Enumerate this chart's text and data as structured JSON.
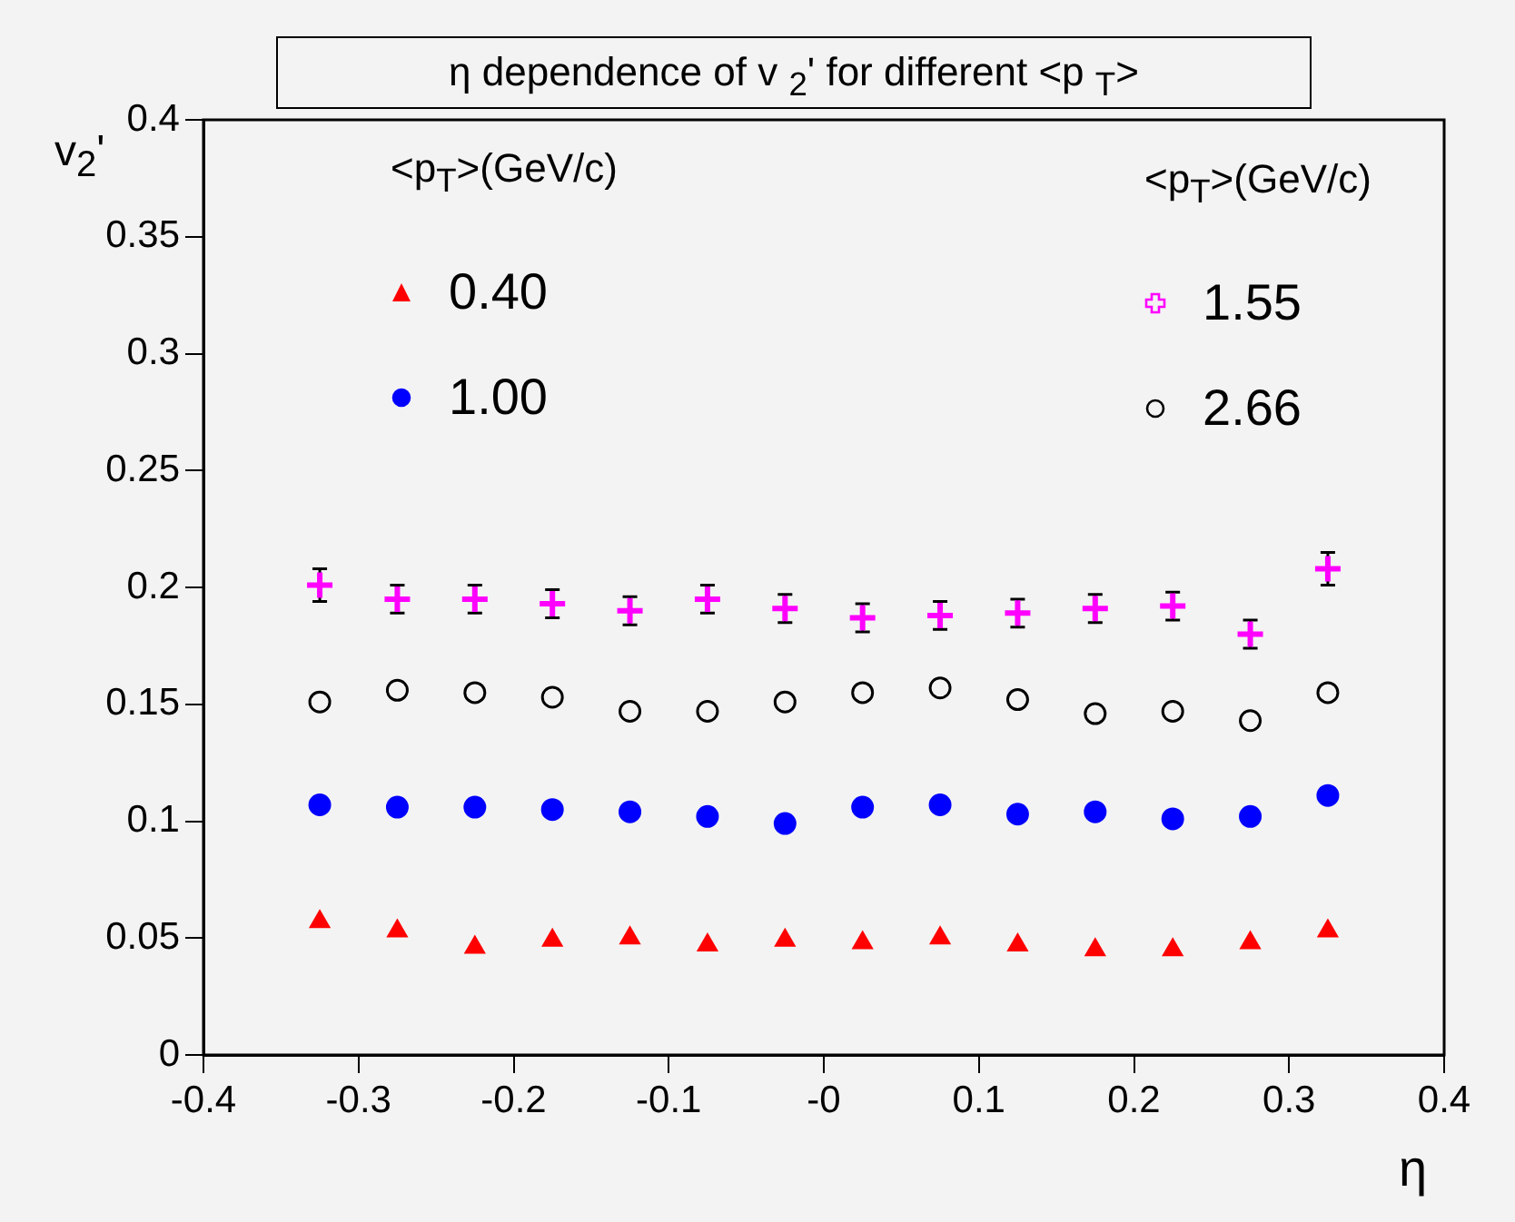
{
  "chart_data": {
    "type": "scatter",
    "title": "η dependence of v $_{2}$' for different <p $_{T}$>",
    "xlabel": "η",
    "ylabel": "v$_{2}$'",
    "legend_title": "<p$_{T}$>(GeV/c)",
    "legend": "top",
    "grid": false,
    "x": [
      -0.325,
      -0.275,
      -0.225,
      -0.175,
      -0.125,
      -0.075,
      -0.025,
      0.025,
      0.075,
      0.125,
      0.175,
      0.225,
      0.275,
      0.325
    ],
    "xlim": [
      -0.4,
      0.4
    ],
    "xticks": [
      -0.4,
      -0.3,
      -0.2,
      -0.1,
      {
        "value": 0,
        "label": "-0"
      },
      0.1,
      0.2,
      0.3,
      0.4
    ],
    "ylim": [
      0,
      0.4
    ],
    "yticks": [
      0,
      0.05,
      0.1,
      0.15,
      0.2,
      0.25,
      0.3,
      0.35,
      0.4
    ],
    "series": [
      {
        "name": "0.40",
        "color": "#ff0000",
        "marker": "triangle",
        "values": [
          0.057,
          0.053,
          0.046,
          0.049,
          0.05,
          0.047,
          0.049,
          0.048,
          0.05,
          0.047,
          0.045,
          0.045,
          0.048,
          0.053
        ]
      },
      {
        "name": "1.00",
        "color": "#0000ff",
        "marker": "circle",
        "values": [
          0.107,
          0.106,
          0.106,
          0.105,
          0.104,
          0.102,
          0.099,
          0.106,
          0.107,
          0.103,
          0.104,
          0.101,
          0.102,
          0.111
        ]
      },
      {
        "name": "1.55",
        "color": "#ff00ff",
        "marker": "cross",
        "values": [
          0.201,
          0.195,
          0.195,
          0.193,
          0.19,
          0.195,
          0.191,
          0.187,
          0.188,
          0.189,
          0.191,
          0.192,
          0.18,
          0.208
        ],
        "errors": [
          0.007,
          0.006,
          0.006,
          0.006,
          0.006,
          0.006,
          0.006,
          0.006,
          0.006,
          0.006,
          0.006,
          0.006,
          0.006,
          0.007
        ]
      },
      {
        "name": "2.66",
        "color": "#000000",
        "marker": "circle",
        "values": [
          0.151,
          0.156,
          0.155,
          0.153,
          0.147,
          0.147,
          0.151,
          0.155,
          0.157,
          0.152,
          0.146,
          0.147,
          0.143,
          0.155
        ]
      }
    ]
  }
}
